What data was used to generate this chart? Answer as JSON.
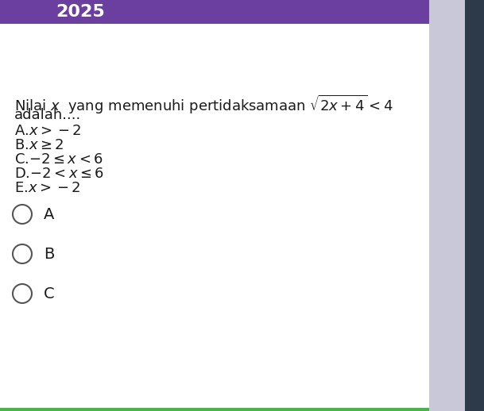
{
  "header_color": "#6B3FA0",
  "header_text": "2025",
  "header_text_color": "#ffffff",
  "bg_color": "#ffffff",
  "right_sidebar_color": "#C8C8D8",
  "far_right_color": "#2D3A4A",
  "radio_labels": [
    "A",
    "B",
    "C"
  ],
  "text_color": "#1a1a1a",
  "font_size_question": 13,
  "font_size_options": 13,
  "font_size_radio": 14
}
